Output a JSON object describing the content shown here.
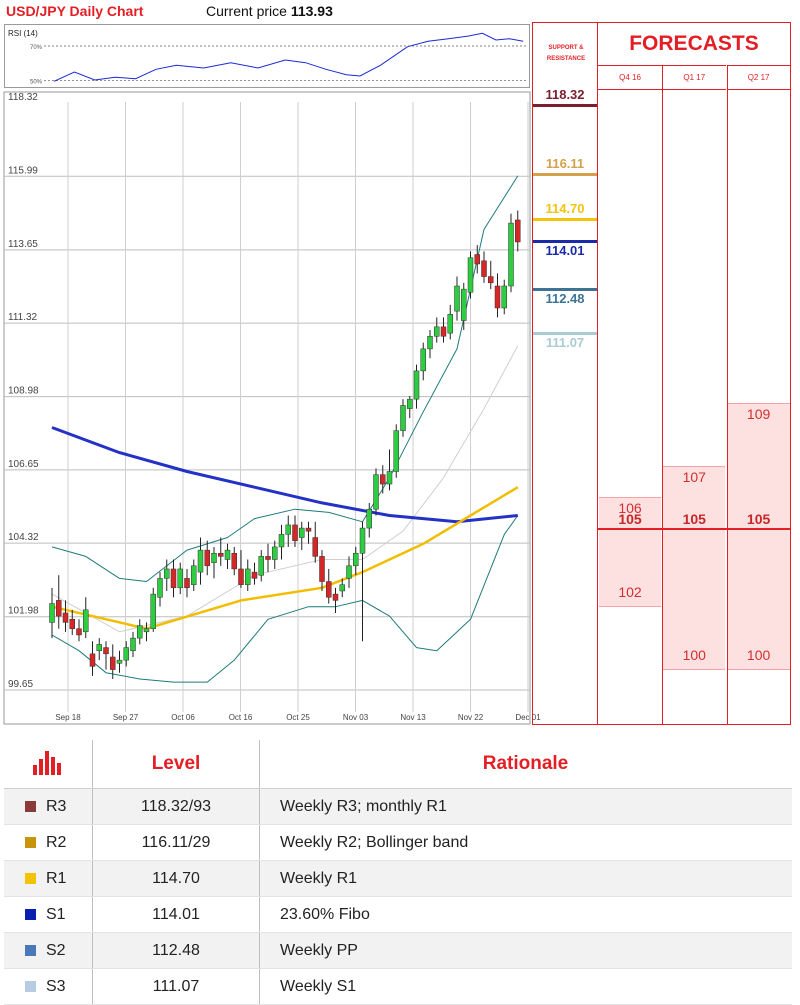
{
  "header": {
    "title": "USD/JPY Daily Chart",
    "current_price_label": "Current price",
    "current_price": "113.93"
  },
  "rsi": {
    "label": "RSI (14)",
    "levels": [
      "70%",
      "50%"
    ]
  },
  "chart_data": {
    "type": "candlestick",
    "title": "USD/JPY Daily Chart",
    "ylim": [
      99.65,
      118.32
    ],
    "y_ticks": [
      "118.32",
      "115.99",
      "113.65",
      "111.32",
      "108.98",
      "106.65",
      "104.32",
      "101.98",
      "99.65"
    ],
    "x_ticks": [
      "Sep 18",
      "Sep 27",
      "Oct 06",
      "Oct 16",
      "Oct 25",
      "Nov 03",
      "Nov 13",
      "Nov 22",
      "Dec 01"
    ],
    "candles": [
      {
        "o": 101.8,
        "h": 102.9,
        "l": 101.3,
        "c": 102.4
      },
      {
        "o": 102.5,
        "h": 103.3,
        "l": 101.6,
        "c": 102.0
      },
      {
        "o": 102.1,
        "h": 102.5,
        "l": 101.5,
        "c": 101.8
      },
      {
        "o": 101.9,
        "h": 102.2,
        "l": 101.4,
        "c": 101.6
      },
      {
        "o": 101.6,
        "h": 101.9,
        "l": 101.2,
        "c": 101.4
      },
      {
        "o": 101.5,
        "h": 102.6,
        "l": 101.3,
        "c": 102.2
      },
      {
        "o": 100.8,
        "h": 101.2,
        "l": 100.1,
        "c": 100.4
      },
      {
        "o": 100.9,
        "h": 101.3,
        "l": 100.6,
        "c": 101.1
      },
      {
        "o": 101.0,
        "h": 101.2,
        "l": 100.3,
        "c": 100.8
      },
      {
        "o": 100.7,
        "h": 101.1,
        "l": 100.0,
        "c": 100.3
      },
      {
        "o": 100.5,
        "h": 100.9,
        "l": 100.2,
        "c": 100.6
      },
      {
        "o": 100.6,
        "h": 101.2,
        "l": 100.4,
        "c": 101.0
      },
      {
        "o": 100.9,
        "h": 101.5,
        "l": 100.7,
        "c": 101.3
      },
      {
        "o": 101.3,
        "h": 101.9,
        "l": 101.1,
        "c": 101.7
      },
      {
        "o": 101.5,
        "h": 101.8,
        "l": 101.2,
        "c": 101.6
      },
      {
        "o": 101.6,
        "h": 102.9,
        "l": 101.5,
        "c": 102.7
      },
      {
        "o": 102.6,
        "h": 103.4,
        "l": 102.3,
        "c": 103.2
      },
      {
        "o": 103.2,
        "h": 103.8,
        "l": 102.8,
        "c": 103.5
      },
      {
        "o": 103.5,
        "h": 103.8,
        "l": 102.6,
        "c": 102.9
      },
      {
        "o": 102.9,
        "h": 103.7,
        "l": 102.7,
        "c": 103.5
      },
      {
        "o": 103.2,
        "h": 103.5,
        "l": 102.6,
        "c": 102.9
      },
      {
        "o": 103.0,
        "h": 103.8,
        "l": 102.8,
        "c": 103.6
      },
      {
        "o": 103.4,
        "h": 104.5,
        "l": 103.0,
        "c": 104.1
      },
      {
        "o": 104.1,
        "h": 104.4,
        "l": 103.3,
        "c": 103.6
      },
      {
        "o": 103.7,
        "h": 104.2,
        "l": 103.2,
        "c": 104.0
      },
      {
        "o": 104.0,
        "h": 104.5,
        "l": 103.6,
        "c": 103.9
      },
      {
        "o": 103.8,
        "h": 104.3,
        "l": 103.5,
        "c": 104.1
      },
      {
        "o": 104.0,
        "h": 104.2,
        "l": 103.3,
        "c": 103.5
      },
      {
        "o": 103.5,
        "h": 104.1,
        "l": 102.9,
        "c": 103.0
      },
      {
        "o": 103.0,
        "h": 103.8,
        "l": 102.8,
        "c": 103.5
      },
      {
        "o": 103.4,
        "h": 103.7,
        "l": 103.0,
        "c": 103.2
      },
      {
        "o": 103.3,
        "h": 104.1,
        "l": 103.1,
        "c": 103.9
      },
      {
        "o": 103.9,
        "h": 104.3,
        "l": 103.4,
        "c": 103.8
      },
      {
        "o": 103.8,
        "h": 104.4,
        "l": 103.5,
        "c": 104.2
      },
      {
        "o": 104.2,
        "h": 104.9,
        "l": 103.8,
        "c": 104.6
      },
      {
        "o": 104.6,
        "h": 105.2,
        "l": 104.2,
        "c": 104.9
      },
      {
        "o": 104.9,
        "h": 105.2,
        "l": 104.2,
        "c": 104.4
      },
      {
        "o": 104.5,
        "h": 105.0,
        "l": 104.1,
        "c": 104.8
      },
      {
        "o": 104.8,
        "h": 105.0,
        "l": 104.3,
        "c": 104.7
      },
      {
        "o": 104.5,
        "h": 105.0,
        "l": 103.7,
        "c": 103.9
      },
      {
        "o": 103.9,
        "h": 104.1,
        "l": 102.8,
        "c": 103.1
      },
      {
        "o": 103.1,
        "h": 103.5,
        "l": 102.4,
        "c": 102.6
      },
      {
        "o": 102.7,
        "h": 102.9,
        "l": 102.1,
        "c": 102.5
      },
      {
        "o": 102.8,
        "h": 103.2,
        "l": 102.6,
        "c": 103.0
      },
      {
        "o": 103.2,
        "h": 103.9,
        "l": 102.9,
        "c": 103.6
      },
      {
        "o": 103.6,
        "h": 104.2,
        "l": 103.3,
        "c": 104.0
      },
      {
        "o": 104.0,
        "h": 105.0,
        "l": 101.2,
        "c": 104.8
      },
      {
        "o": 104.8,
        "h": 105.6,
        "l": 104.5,
        "c": 105.4
      },
      {
        "o": 105.4,
        "h": 106.7,
        "l": 105.2,
        "c": 106.5
      },
      {
        "o": 106.5,
        "h": 106.8,
        "l": 105.9,
        "c": 106.2
      },
      {
        "o": 106.2,
        "h": 107.3,
        "l": 106.0,
        "c": 106.6
      },
      {
        "o": 106.6,
        "h": 108.1,
        "l": 106.4,
        "c": 107.9
      },
      {
        "o": 107.9,
        "h": 108.9,
        "l": 107.7,
        "c": 108.7
      },
      {
        "o": 108.6,
        "h": 109.0,
        "l": 108.3,
        "c": 108.9
      },
      {
        "o": 108.9,
        "h": 110.0,
        "l": 108.6,
        "c": 109.8
      },
      {
        "o": 109.8,
        "h": 110.7,
        "l": 109.5,
        "c": 110.5
      },
      {
        "o": 110.5,
        "h": 111.1,
        "l": 110.2,
        "c": 110.9
      },
      {
        "o": 110.9,
        "h": 111.5,
        "l": 110.7,
        "c": 111.2
      },
      {
        "o": 111.2,
        "h": 111.5,
        "l": 110.7,
        "c": 110.9
      },
      {
        "o": 111.0,
        "h": 111.9,
        "l": 110.8,
        "c": 111.6
      },
      {
        "o": 111.7,
        "h": 112.8,
        "l": 111.4,
        "c": 112.5
      },
      {
        "o": 111.4,
        "h": 112.6,
        "l": 111.1,
        "c": 112.4
      },
      {
        "o": 112.3,
        "h": 113.6,
        "l": 112.1,
        "c": 113.4
      },
      {
        "o": 113.5,
        "h": 113.8,
        "l": 112.9,
        "c": 113.2
      },
      {
        "o": 113.3,
        "h": 113.6,
        "l": 112.6,
        "c": 112.8
      },
      {
        "o": 112.8,
        "h": 113.3,
        "l": 112.4,
        "c": 112.6
      },
      {
        "o": 112.5,
        "h": 112.9,
        "l": 111.5,
        "c": 111.8
      },
      {
        "o": 111.8,
        "h": 112.7,
        "l": 111.6,
        "c": 112.5
      },
      {
        "o": 112.5,
        "h": 114.8,
        "l": 112.3,
        "c": 114.5
      },
      {
        "o": 114.6,
        "h": 114.9,
        "l": 113.6,
        "c": 113.9
      }
    ],
    "ma_yellow": [
      [
        0,
        102.3
      ],
      [
        14,
        101.6
      ],
      [
        28,
        102.5
      ],
      [
        40,
        102.9
      ],
      [
        46,
        103.4
      ],
      [
        55,
        104.3
      ],
      [
        62,
        105.2
      ],
      [
        69,
        106.1
      ]
    ],
    "ma_blue": [
      [
        0,
        108.0
      ],
      [
        10,
        107.2
      ],
      [
        20,
        106.6
      ],
      [
        30,
        106.1
      ],
      [
        40,
        105.6
      ],
      [
        50,
        105.2
      ],
      [
        60,
        105.0
      ],
      [
        69,
        105.2
      ]
    ],
    "boll_upper": [
      [
        0,
        104.2
      ],
      [
        5,
        103.9
      ],
      [
        10,
        103.2
      ],
      [
        14,
        103.1
      ],
      [
        20,
        104.1
      ],
      [
        26,
        104.5
      ],
      [
        30,
        105.1
      ],
      [
        36,
        105.4
      ],
      [
        41,
        105.3
      ],
      [
        46,
        105.0
      ],
      [
        50,
        106.4
      ],
      [
        55,
        108.5
      ],
      [
        60,
        110.5
      ],
      [
        64,
        114.3
      ],
      [
        69,
        116.0
      ]
    ],
    "boll_lower": [
      [
        0,
        101.4
      ],
      [
        4,
        100.9
      ],
      [
        8,
        100.2
      ],
      [
        13,
        100.0
      ],
      [
        18,
        99.9
      ],
      [
        23,
        99.9
      ],
      [
        27,
        100.6
      ],
      [
        32,
        101.9
      ],
      [
        38,
        102.3
      ],
      [
        42,
        102.3
      ],
      [
        46,
        102.5
      ],
      [
        50,
        102.0
      ],
      [
        54,
        101.0
      ],
      [
        57,
        100.9
      ],
      [
        62,
        101.9
      ],
      [
        67,
        104.6
      ],
      [
        69,
        105.2
      ]
    ],
    "boll_mid": [
      [
        0,
        102.7
      ],
      [
        10,
        101.5
      ],
      [
        20,
        102.0
      ],
      [
        30,
        103.3
      ],
      [
        40,
        103.8
      ],
      [
        46,
        103.8
      ],
      [
        52,
        104.7
      ],
      [
        58,
        106.4
      ],
      [
        64,
        108.6
      ],
      [
        69,
        110.6
      ]
    ],
    "rsi_values": [
      [
        0,
        48
      ],
      [
        3,
        55
      ],
      [
        6,
        49
      ],
      [
        9,
        51
      ],
      [
        12,
        50
      ],
      [
        15,
        57
      ],
      [
        18,
        60
      ],
      [
        22,
        58
      ],
      [
        26,
        62
      ],
      [
        30,
        58
      ],
      [
        34,
        64
      ],
      [
        37,
        62
      ],
      [
        40,
        57
      ],
      [
        43,
        53
      ],
      [
        45,
        52
      ],
      [
        48,
        60
      ],
      [
        52,
        74
      ],
      [
        55,
        78
      ],
      [
        58,
        80
      ],
      [
        61,
        82
      ],
      [
        63,
        84
      ],
      [
        65,
        79
      ],
      [
        67,
        80
      ],
      [
        69,
        78
      ]
    ]
  },
  "support_resistance": {
    "header": "SUPPORT & RESISTANCE",
    "levels": [
      {
        "value": "118.32",
        "num": 118.32,
        "color": "#7b1f2e"
      },
      {
        "value": "116.11",
        "num": 116.11,
        "color": "#d4a24a"
      },
      {
        "value": "114.70",
        "num": 114.7,
        "color": "#f1c40f"
      },
      {
        "value": "114.01",
        "num": 114.01,
        "color": "#1a2aa8"
      },
      {
        "value": "112.48",
        "num": 112.48,
        "color": "#3e7396"
      },
      {
        "value": "111.07",
        "num": 111.07,
        "color": "#a9cbd4"
      }
    ]
  },
  "forecasts": {
    "title": "FORECASTS",
    "columns": [
      {
        "label": "Q4 16",
        "range_hi": 106,
        "range_lo": 102,
        "hi": "106",
        "mid": "105",
        "lo": "102"
      },
      {
        "label": "Q1 17",
        "range_hi": 107,
        "range_lo": 100,
        "hi": "107",
        "mid": "105",
        "lo": "100"
      },
      {
        "label": "Q2 17",
        "range_hi": 109,
        "range_lo": 100,
        "hi": "109",
        "mid": "105",
        "lo": "100"
      }
    ]
  },
  "table": {
    "headers": [
      "",
      "Level",
      "Rationale"
    ],
    "rows": [
      {
        "name": "R3",
        "level": "118.32/93",
        "rationale": "Weekly R3; monthly R1",
        "color": "#8b3a3a"
      },
      {
        "name": "R2",
        "level": "116.11/29",
        "rationale": "Weekly R2; Bollinger band",
        "color": "#c8950a"
      },
      {
        "name": "R1",
        "level": "114.70",
        "rationale": "Weekly R1",
        "color": "#f4c300"
      },
      {
        "name": "S1",
        "level": "114.01",
        "rationale": "23.60% Fibo",
        "color": "#0a1fb0"
      },
      {
        "name": "S2",
        "level": "112.48",
        "rationale": "Weekly PP",
        "color": "#4a79b8"
      },
      {
        "name": "S3",
        "level": "111.07",
        "rationale": "Weekly S1",
        "color": "#b7cbe2"
      }
    ]
  }
}
